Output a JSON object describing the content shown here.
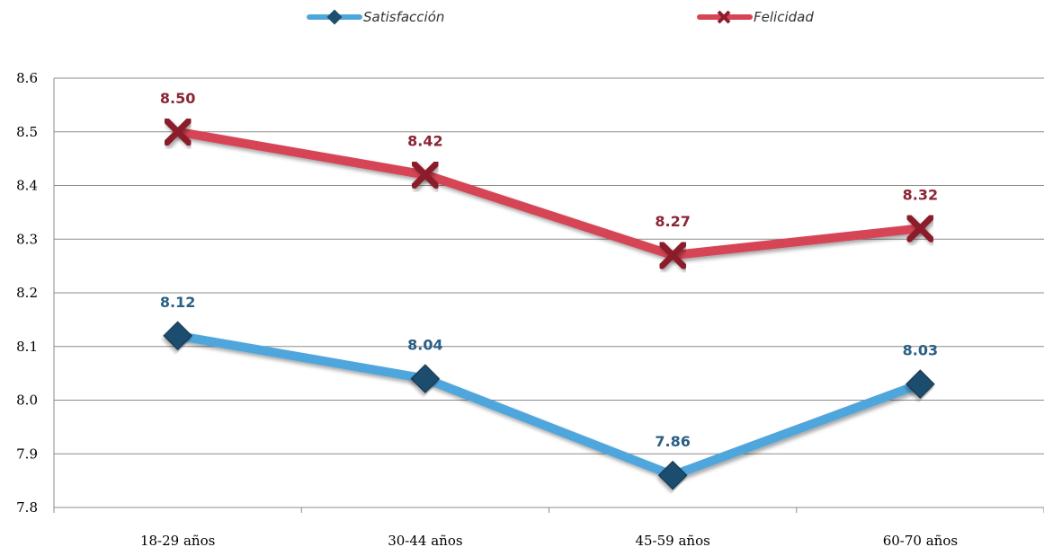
{
  "chart_data": {
    "type": "line",
    "title": "",
    "xlabel": "",
    "ylabel": "",
    "categories": [
      "18-29 años",
      "30-44 años",
      "45-59 años",
      "60-70 años"
    ],
    "ylim": [
      7.8,
      8.6
    ],
    "yticks": [
      "7.8",
      "7.9",
      "8.0",
      "8.1",
      "8.2",
      "8.3",
      "8.4",
      "8.5",
      "8.6"
    ],
    "grid": true,
    "legend_position": "top",
    "series": [
      {
        "name": "Satisfacción",
        "values": [
          8.12,
          8.04,
          7.86,
          8.03
        ],
        "labels": [
          "8.12",
          "8.04",
          "7.86",
          "8.03"
        ],
        "color": "#4fa6dc",
        "marker_color": "#1f4e6e",
        "label_color": "#2a5f86",
        "marker": "diamond"
      },
      {
        "name": "Felicidad",
        "values": [
          8.5,
          8.42,
          8.27,
          8.32
        ],
        "labels": [
          "8.50",
          "8.42",
          "8.27",
          "8.32"
        ],
        "color": "#d64455",
        "marker_color": "#8b1d2c",
        "label_color": "#8b2535",
        "marker": "cross"
      }
    ]
  }
}
